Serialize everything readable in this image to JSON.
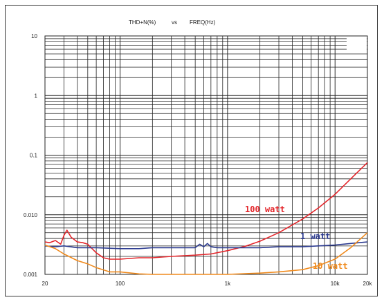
{
  "chart_data": {
    "type": "line",
    "title_left": "THD+N(%)",
    "title_mid": "vs",
    "title_right": "FREQ(Hz)",
    "x_scale": "log",
    "y_scale": "log",
    "xlim": [
      20,
      20000
    ],
    "ylim": [
      0.001,
      10
    ],
    "x_ticks": [
      {
        "value": 20,
        "label": "20"
      },
      {
        "value": 100,
        "label": "100"
      },
      {
        "value": 1000,
        "label": "1k"
      },
      {
        "value": 10000,
        "label": "10k"
      },
      {
        "value": 20000,
        "label": "20k"
      }
    ],
    "y_ticks": [
      {
        "value": 10,
        "label": "10"
      },
      {
        "value": 1,
        "label": "1"
      },
      {
        "value": 0.1,
        "label": "0.1"
      },
      {
        "value": 0.01,
        "label": "0.010"
      },
      {
        "value": 0.001,
        "label": "0.001"
      }
    ],
    "grid": true,
    "series": [
      {
        "name": "100 watt",
        "color": "#e3262b",
        "x": [
          20,
          22,
          25,
          28,
          30,
          32,
          35,
          40,
          45,
          50,
          60,
          70,
          80,
          100,
          150,
          200,
          300,
          500,
          700,
          1000,
          1500,
          2000,
          3000,
          5000,
          7000,
          10000,
          14000,
          20000
        ],
        "y": [
          0.0035,
          0.0034,
          0.0037,
          0.0032,
          0.0045,
          0.0055,
          0.0042,
          0.0035,
          0.0034,
          0.0032,
          0.0023,
          0.0019,
          0.0018,
          0.0018,
          0.0019,
          0.0019,
          0.002,
          0.0021,
          0.0022,
          0.0025,
          0.003,
          0.0036,
          0.005,
          0.0085,
          0.013,
          0.022,
          0.04,
          0.075
        ]
      },
      {
        "name": "1 watt",
        "color": "#2b3a8f",
        "x": [
          20,
          25,
          30,
          40,
          60,
          100,
          150,
          200,
          300,
          500,
          550,
          600,
          650,
          700,
          800,
          1000,
          2000,
          3000,
          5000,
          7000,
          10000,
          14000,
          20000
        ],
        "y": [
          0.003,
          0.0029,
          0.003,
          0.0028,
          0.0028,
          0.0027,
          0.0027,
          0.0028,
          0.0028,
          0.0028,
          0.0032,
          0.0029,
          0.0033,
          0.0029,
          0.0028,
          0.0028,
          0.0028,
          0.0029,
          0.0029,
          0.003,
          0.0031,
          0.0033,
          0.0035
        ]
      },
      {
        "name": "10 watt",
        "color": "#f08a1c",
        "x": [
          20,
          25,
          30,
          40,
          50,
          60,
          80,
          100,
          150,
          200,
          300,
          500,
          700,
          1000,
          1500,
          2000,
          3000,
          5000,
          7000,
          10000,
          14000,
          20000
        ],
        "y": [
          0.0031,
          0.0027,
          0.0022,
          0.0017,
          0.0015,
          0.0013,
          0.0011,
          0.0011,
          0.00102,
          0.001,
          0.001,
          0.001,
          0.001,
          0.001,
          0.00103,
          0.00105,
          0.0011,
          0.0012,
          0.0014,
          0.0018,
          0.0028,
          0.005
        ]
      }
    ]
  }
}
